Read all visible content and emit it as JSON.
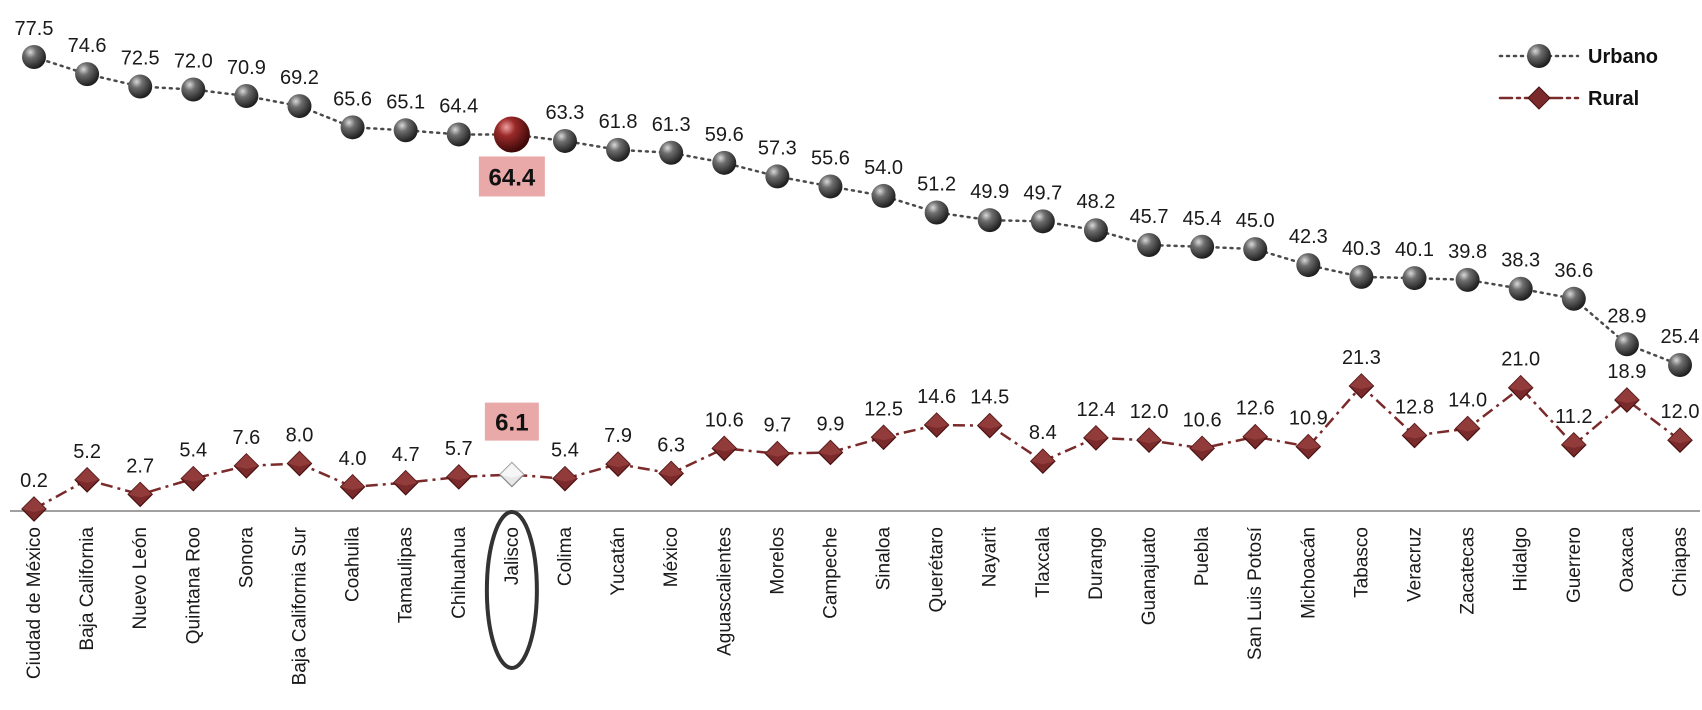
{
  "chart_data": {
    "type": "line",
    "categories": [
      "Ciudad de México",
      "Baja California",
      "Nuevo León",
      "Quintana Roo",
      "Sonora",
      "Baja California Sur",
      "Coahuila",
      "Tamaulipas",
      "Chihuahua",
      "Jalisco",
      "Colima",
      "Yucatán",
      "México",
      "Aguascalientes",
      "Morelos",
      "Campeche",
      "Sinaloa",
      "Querétaro",
      "Nayarit",
      "Tlaxcala",
      "Durango",
      "Guanajuato",
      "Puebla",
      "San Luis Potosí",
      "Michoacán",
      "Tabasco",
      "Veracruz",
      "Zacatecas",
      "Hidalgo",
      "Guerrero",
      "Oaxaca",
      "Chiapas"
    ],
    "series": [
      {
        "name": "Urbano",
        "color": "#4a4a4a",
        "marker": "sphere",
        "values": [
          77.5,
          74.6,
          72.5,
          72.0,
          70.9,
          69.2,
          65.6,
          65.1,
          64.4,
          64.4,
          63.3,
          61.8,
          61.3,
          59.6,
          57.3,
          55.6,
          54.0,
          51.2,
          49.9,
          49.7,
          48.2,
          45.7,
          45.4,
          45.0,
          42.3,
          40.3,
          40.1,
          39.8,
          38.3,
          36.6,
          28.9,
          25.4
        ]
      },
      {
        "name": "Rural",
        "color": "#7a2a2a",
        "marker": "diamond",
        "values": [
          0.2,
          5.2,
          2.7,
          5.4,
          7.6,
          8.0,
          4.0,
          4.7,
          5.7,
          6.1,
          5.4,
          7.9,
          6.3,
          10.6,
          9.7,
          9.9,
          12.5,
          14.6,
          14.5,
          8.4,
          12.4,
          12.0,
          10.6,
          12.6,
          10.9,
          21.3,
          12.8,
          14.0,
          21.0,
          11.2,
          18.9,
          12.0
        ]
      }
    ],
    "highlight": {
      "category": "Jalisco",
      "urbano": "64.4",
      "rural": "6.1",
      "highlight_color": "#e9a9a9"
    },
    "legend_position": "top-right",
    "grid": false,
    "ylim": [
      0,
      80
    ]
  }
}
